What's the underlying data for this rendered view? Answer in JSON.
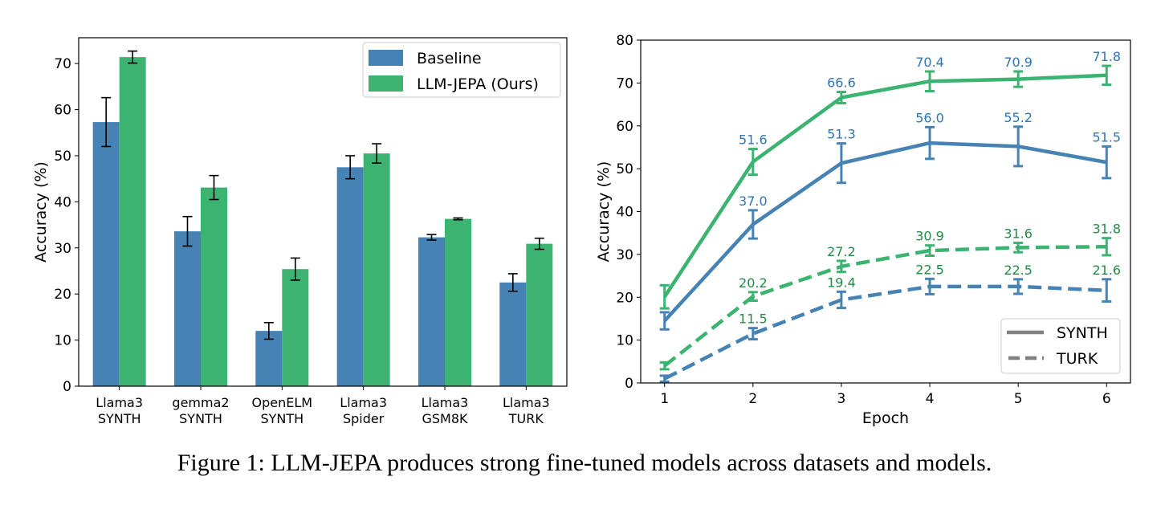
{
  "caption": "Figure 1: LLM-JEPA produces strong fine-tuned models across datasets and models.",
  "colors": {
    "baseline": "#4682b4",
    "jepa": "#3cb371",
    "label_blue": "#2f75b5",
    "label_green": "#238a45"
  },
  "chart_data": [
    {
      "type": "bar",
      "title": "",
      "xlabel": "",
      "ylabel": "Accuracy (%)",
      "ylim": [
        0,
        75.6
      ],
      "yticks": [
        0,
        10,
        20,
        30,
        40,
        50,
        60,
        70
      ],
      "categories": [
        [
          "Llama3",
          "SYNTH"
        ],
        [
          "gemma2",
          "SYNTH"
        ],
        [
          "OpenELM",
          "SYNTH"
        ],
        [
          "Llama3",
          "Spider"
        ],
        [
          "Llama3",
          "GSM8K"
        ],
        [
          "Llama3",
          "TURK"
        ]
      ],
      "legend_position": "top-right",
      "series": [
        {
          "name": "Baseline",
          "values": [
            57.3,
            33.6,
            12.0,
            47.5,
            32.3,
            22.5
          ],
          "errors": [
            5.3,
            3.2,
            1.8,
            2.5,
            0.6,
            1.9
          ]
        },
        {
          "name": "LLM-JEPA (Ours)",
          "values": [
            71.4,
            43.1,
            25.4,
            50.5,
            36.3,
            30.9
          ],
          "errors": [
            1.3,
            2.6,
            2.4,
            2.1,
            0.2,
            1.2
          ]
        }
      ]
    },
    {
      "type": "line",
      "title": "",
      "xlabel": "Epoch",
      "ylabel": "Accuracy (%)",
      "xlim": [
        0.73,
        6.27
      ],
      "ylim": [
        0,
        80
      ],
      "x": [
        1,
        2,
        3,
        4,
        5,
        6
      ],
      "yticks": [
        0,
        10,
        20,
        30,
        40,
        50,
        60,
        70,
        80
      ],
      "legend_position": "bottom-right",
      "legend": [
        "SYNTH",
        "TURK"
      ],
      "series": [
        {
          "name": "LLM-JEPA SYNTH",
          "style": "solid",
          "color": "jepa",
          "label_color": "label_blue",
          "values": [
            20.1,
            51.6,
            66.6,
            70.4,
            70.9,
            71.8
          ],
          "errors": [
            2.7,
            3.0,
            1.3,
            2.3,
            1.8,
            2.2
          ],
          "labels": [
            "",
            "51.6",
            "66.6",
            "70.4",
            "70.9",
            "71.8"
          ]
        },
        {
          "name": "Baseline SYNTH",
          "style": "solid",
          "color": "baseline",
          "label_color": "label_blue",
          "values": [
            14.5,
            37.0,
            51.3,
            56.0,
            55.2,
            51.5
          ],
          "errors": [
            2.0,
            3.3,
            4.6,
            3.7,
            4.6,
            3.7
          ],
          "labels": [
            "",
            "37.0",
            "51.3",
            "56.0",
            "55.2",
            "51.5"
          ]
        },
        {
          "name": "LLM-JEPA TURK",
          "style": "dashed",
          "color": "jepa",
          "label_color": "label_green",
          "values": [
            4.0,
            20.2,
            27.2,
            30.9,
            31.6,
            31.8
          ],
          "errors": [
            0.8,
            1.0,
            1.3,
            1.2,
            1.1,
            2.0
          ],
          "labels": [
            "",
            "20.2",
            "27.2",
            "30.9",
            "31.6",
            "31.8"
          ]
        },
        {
          "name": "Baseline TURK",
          "style": "dashed",
          "color": "baseline",
          "label_color": "label_green",
          "values": [
            1.0,
            11.5,
            19.4,
            22.5,
            22.5,
            21.6
          ],
          "errors": [
            0.7,
            1.3,
            1.9,
            1.8,
            1.7,
            2.6
          ],
          "labels": [
            "",
            "11.5",
            "19.4",
            "22.5",
            "22.5",
            "21.6"
          ]
        }
      ]
    }
  ]
}
